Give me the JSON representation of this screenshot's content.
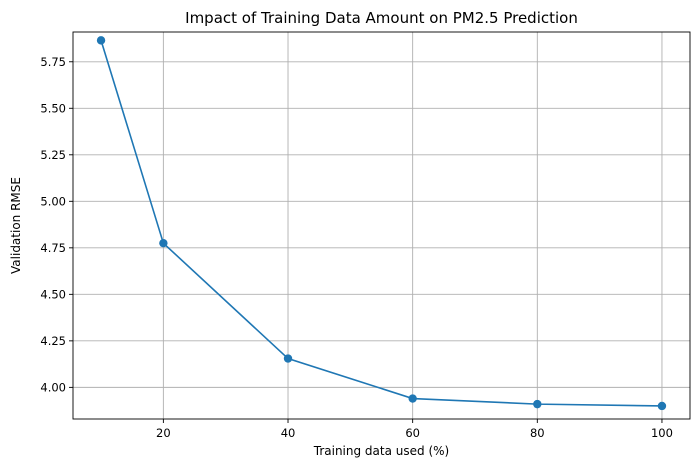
{
  "chart_data": {
    "type": "line",
    "title": "Impact of Training Data Amount on PM2.5 Prediction",
    "xlabel": "Training data used (%)",
    "ylabel": "Validation RMSE",
    "xlim": [
      5.5,
      104.5
    ],
    "ylim": [
      3.83,
      5.91
    ],
    "xticks": [
      20,
      40,
      60,
      80,
      100
    ],
    "yticks": [
      4.0,
      4.25,
      4.5,
      4.75,
      5.0,
      5.25,
      5.5,
      5.75
    ],
    "ytick_labels": [
      "4.00",
      "4.25",
      "4.50",
      "4.75",
      "5.00",
      "5.25",
      "5.50",
      "5.75"
    ],
    "xtick_labels": [
      "20",
      "40",
      "60",
      "80",
      "100"
    ],
    "grid": true,
    "marker": "circle",
    "series": [
      {
        "color": "#1f77b4",
        "x": [
          10,
          20,
          40,
          60,
          80,
          100
        ],
        "y": [
          5.865,
          4.775,
          4.155,
          3.94,
          3.91,
          3.9
        ]
      }
    ]
  }
}
